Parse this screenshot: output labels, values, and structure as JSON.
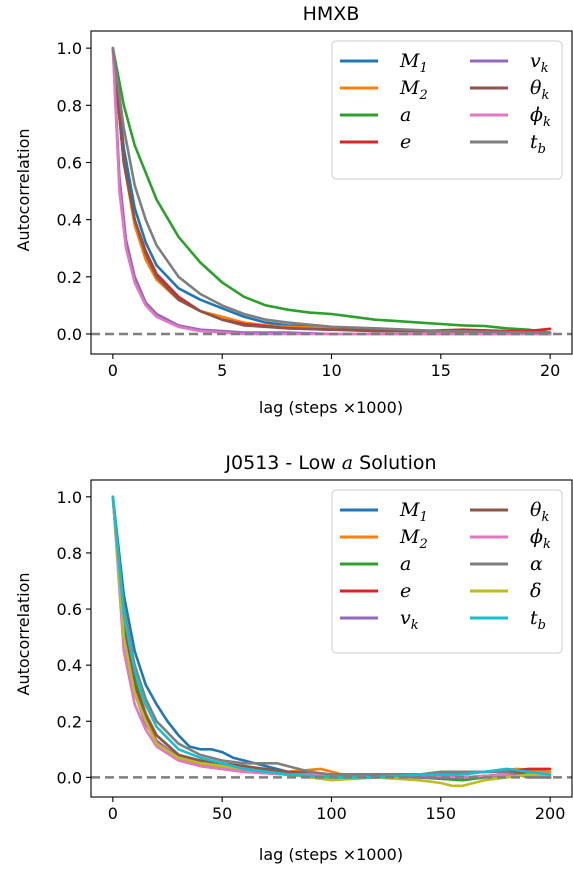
{
  "colors": {
    "blue": "#1f77b4",
    "orange": "#ff7f0e",
    "green": "#2ca02c",
    "red": "#d62728",
    "purple": "#9467bd",
    "brown": "#8c564b",
    "pink": "#e377c2",
    "gray": "#7f7f7f",
    "olive": "#bcbd22",
    "cyan": "#17becf"
  },
  "chart_data": [
    {
      "type": "line",
      "title": "HMXB",
      "xlabel": "lag (steps ×1000)",
      "ylabel": "Autocorrelation",
      "xlim": [
        -1,
        21
      ],
      "ylim": [
        -0.07,
        1.06
      ],
      "xticks": [
        0,
        5,
        10,
        15,
        20
      ],
      "yticks": [
        0.0,
        0.2,
        0.4,
        0.6,
        0.8,
        1.0
      ],
      "xtick_labels": [
        "0",
        "5",
        "10",
        "15",
        "20"
      ],
      "ytick_labels": [
        "0.0",
        "0.2",
        "0.4",
        "0.6",
        "0.8",
        "1.0"
      ],
      "reference_line": 0.0,
      "legend_placement": "top-right",
      "legend_columns": 2,
      "series": [
        {
          "name": "M",
          "sub": "1",
          "color": "#1f77b4",
          "x": [
            0,
            0.5,
            1,
            1.5,
            2,
            3,
            4,
            5,
            6,
            7,
            8,
            10,
            12,
            15,
            20
          ],
          "y": [
            1.0,
            0.65,
            0.44,
            0.32,
            0.24,
            0.16,
            0.12,
            0.09,
            0.06,
            0.04,
            0.03,
            0.02,
            0.015,
            0.01,
            0.0
          ]
        },
        {
          "name": "M",
          "sub": "2",
          "color": "#ff7f0e",
          "x": [
            0,
            0.5,
            1,
            1.5,
            2,
            3,
            4,
            5,
            6,
            7,
            8,
            10,
            12,
            15,
            20
          ],
          "y": [
            1.0,
            0.6,
            0.38,
            0.26,
            0.19,
            0.12,
            0.08,
            0.06,
            0.04,
            0.03,
            0.025,
            0.02,
            0.015,
            0.01,
            0.0
          ]
        },
        {
          "name": "a",
          "sub": "",
          "color": "#2ca02c",
          "x": [
            0,
            0.5,
            1,
            2,
            3,
            4,
            5,
            6,
            7,
            8,
            9,
            10,
            11,
            12,
            13,
            14,
            15,
            16,
            17,
            18,
            19,
            20
          ],
          "y": [
            1.0,
            0.8,
            0.66,
            0.47,
            0.34,
            0.25,
            0.18,
            0.13,
            0.1,
            0.085,
            0.075,
            0.07,
            0.06,
            0.05,
            0.045,
            0.04,
            0.035,
            0.03,
            0.028,
            0.02,
            0.015,
            0.005
          ]
        },
        {
          "name": "e",
          "sub": "",
          "color": "#d62728",
          "x": [
            0,
            0.5,
            1,
            1.5,
            2,
            3,
            4,
            5,
            6,
            8,
            10,
            12,
            14,
            16,
            18,
            19,
            20
          ],
          "y": [
            1.0,
            0.6,
            0.4,
            0.29,
            0.21,
            0.13,
            0.08,
            0.05,
            0.035,
            0.02,
            0.015,
            0.015,
            0.01,
            0.015,
            0.01,
            0.01,
            0.018
          ]
        },
        {
          "name": "v",
          "sub": "k",
          "color": "#9467bd",
          "x": [
            0,
            0.3,
            0.6,
            1,
            1.5,
            2,
            3,
            4,
            5,
            6,
            8,
            10,
            15,
            20
          ],
          "y": [
            1.0,
            0.55,
            0.33,
            0.2,
            0.11,
            0.07,
            0.03,
            0.015,
            0.01,
            0.005,
            0.005,
            0.0,
            0.0,
            0.0
          ]
        },
        {
          "name": "θ",
          "sub": "k",
          "color": "#8c564b",
          "x": [
            0,
            0.5,
            1,
            1.5,
            2,
            3,
            4,
            5,
            6,
            8,
            10,
            12,
            15,
            20
          ],
          "y": [
            1.0,
            0.6,
            0.4,
            0.28,
            0.2,
            0.12,
            0.08,
            0.05,
            0.03,
            0.02,
            0.015,
            0.01,
            0.01,
            0.0
          ]
        },
        {
          "name": "ϕ",
          "sub": "k",
          "color": "#e377c2",
          "x": [
            0,
            0.3,
            0.6,
            1,
            1.5,
            2,
            3,
            4,
            5,
            6,
            8,
            10,
            15,
            20
          ],
          "y": [
            1.0,
            0.5,
            0.3,
            0.18,
            0.1,
            0.06,
            0.025,
            0.01,
            0.005,
            0.0,
            0.0,
            0.0,
            0.0,
            0.0
          ]
        },
        {
          "name": "t",
          "sub": "b",
          "color": "#7f7f7f",
          "x": [
            0,
            0.5,
            1,
            1.5,
            2,
            3,
            4,
            5,
            6,
            7,
            8,
            10,
            12,
            15,
            20
          ],
          "y": [
            1.0,
            0.72,
            0.52,
            0.4,
            0.31,
            0.2,
            0.14,
            0.1,
            0.07,
            0.05,
            0.04,
            0.025,
            0.02,
            0.01,
            0.005
          ]
        }
      ]
    },
    {
      "type": "line",
      "title": "J0513 - Low a Solution",
      "title_prefix": "J0513 - Low ",
      "title_italic": "a",
      "title_suffix": " Solution",
      "xlabel": "lag (steps ×1000)",
      "ylabel": "Autocorrelation",
      "xlim": [
        -10,
        210
      ],
      "ylim": [
        -0.07,
        1.06
      ],
      "xticks": [
        0,
        50,
        100,
        150,
        200
      ],
      "yticks": [
        0.0,
        0.2,
        0.4,
        0.6,
        0.8,
        1.0
      ],
      "xtick_labels": [
        "0",
        "50",
        "100",
        "150",
        "200"
      ],
      "ytick_labels": [
        "0.0",
        "0.2",
        "0.4",
        "0.6",
        "0.8",
        "1.0"
      ],
      "reference_line": 0.0,
      "legend_placement": "top-right",
      "legend_columns": 2,
      "series": [
        {
          "name": "M",
          "sub": "1",
          "color": "#1f77b4",
          "x": [
            0,
            5,
            10,
            15,
            20,
            25,
            30,
            35,
            40,
            45,
            50,
            55,
            60,
            70,
            80,
            90,
            100,
            120,
            140,
            160,
            180,
            200
          ],
          "y": [
            1.0,
            0.65,
            0.45,
            0.33,
            0.26,
            0.2,
            0.15,
            0.11,
            0.1,
            0.1,
            0.09,
            0.07,
            0.06,
            0.04,
            0.02,
            0.01,
            0.01,
            0.01,
            0.01,
            0.0,
            0.01,
            0.0
          ]
        },
        {
          "name": "M",
          "sub": "2",
          "color": "#ff7f0e",
          "x": [
            0,
            5,
            10,
            15,
            20,
            30,
            40,
            50,
            60,
            80,
            95,
            100,
            110,
            130,
            150,
            170,
            185,
            200
          ],
          "y": [
            1.0,
            0.55,
            0.35,
            0.23,
            0.15,
            0.08,
            0.05,
            0.04,
            0.03,
            0.02,
            0.03,
            0.02,
            0.0,
            0.01,
            0.01,
            0.02,
            0.03,
            0.02
          ]
        },
        {
          "name": "a",
          "sub": "",
          "color": "#2ca02c",
          "x": [
            0,
            5,
            10,
            15,
            20,
            30,
            40,
            50,
            60,
            70,
            80,
            100,
            120,
            140,
            160,
            180,
            200
          ],
          "y": [
            1.0,
            0.55,
            0.35,
            0.22,
            0.15,
            0.08,
            0.05,
            0.04,
            0.03,
            0.02,
            0.01,
            0.01,
            0.01,
            0.0,
            -0.01,
            0.01,
            0.0
          ]
        },
        {
          "name": "e",
          "sub": "",
          "color": "#d62728",
          "x": [
            0,
            5,
            10,
            15,
            20,
            30,
            40,
            50,
            60,
            80,
            100,
            120,
            140,
            160,
            180,
            190,
            200
          ],
          "y": [
            1.0,
            0.5,
            0.3,
            0.2,
            0.13,
            0.07,
            0.04,
            0.03,
            0.02,
            0.01,
            0.0,
            0.01,
            0.01,
            0.02,
            0.02,
            0.03,
            0.03
          ]
        },
        {
          "name": "v",
          "sub": "k",
          "color": "#9467bd",
          "x": [
            0,
            5,
            10,
            15,
            20,
            30,
            40,
            50,
            60,
            80,
            100,
            120,
            140,
            160,
            180,
            200
          ],
          "y": [
            1.0,
            0.52,
            0.3,
            0.19,
            0.13,
            0.07,
            0.05,
            0.04,
            0.03,
            0.02,
            0.01,
            0.0,
            0.0,
            0.0,
            0.01,
            0.0
          ]
        },
        {
          "name": "θ",
          "sub": "k",
          "color": "#8c564b",
          "x": [
            0,
            5,
            10,
            15,
            20,
            30,
            40,
            50,
            60,
            80,
            100,
            120,
            140,
            160,
            180,
            200
          ],
          "y": [
            1.0,
            0.55,
            0.33,
            0.22,
            0.15,
            0.08,
            0.06,
            0.05,
            0.04,
            0.02,
            0.01,
            0.01,
            0.01,
            0.02,
            0.02,
            0.01
          ]
        },
        {
          "name": "ϕ",
          "sub": "k",
          "color": "#e377c2",
          "x": [
            0,
            5,
            10,
            15,
            20,
            30,
            40,
            50,
            60,
            80,
            100,
            120,
            140,
            160,
            180,
            200
          ],
          "y": [
            1.0,
            0.45,
            0.26,
            0.17,
            0.11,
            0.06,
            0.04,
            0.03,
            0.02,
            0.01,
            0.01,
            0.0,
            0.01,
            0.0,
            0.01,
            0.0
          ]
        },
        {
          "name": "α",
          "sub": "",
          "color": "#7f7f7f",
          "x": [
            0,
            5,
            10,
            15,
            20,
            30,
            40,
            50,
            60,
            65,
            70,
            75,
            80,
            90,
            100,
            120,
            140,
            150,
            160,
            170,
            180,
            190,
            200
          ],
          "y": [
            1.0,
            0.6,
            0.4,
            0.28,
            0.2,
            0.12,
            0.08,
            0.06,
            0.05,
            0.05,
            0.05,
            0.05,
            0.04,
            0.02,
            0.01,
            0.01,
            0.01,
            0.02,
            0.02,
            0.02,
            0.02,
            0.0,
            0.0
          ]
        },
        {
          "name": "δ",
          "sub": "",
          "color": "#bcbd22",
          "x": [
            0,
            5,
            10,
            15,
            20,
            30,
            40,
            50,
            60,
            80,
            100,
            120,
            140,
            150,
            155,
            160,
            165,
            170,
            180,
            190,
            200
          ],
          "y": [
            1.0,
            0.5,
            0.3,
            0.2,
            0.12,
            0.07,
            0.05,
            0.04,
            0.03,
            0.01,
            -0.01,
            0.0,
            -0.01,
            -0.02,
            -0.03,
            -0.03,
            -0.02,
            -0.01,
            0.0,
            0.01,
            0.01
          ]
        },
        {
          "name": "t",
          "sub": "b",
          "color": "#17becf",
          "x": [
            0,
            5,
            10,
            15,
            20,
            30,
            40,
            50,
            60,
            80,
            100,
            120,
            140,
            160,
            170,
            180,
            190,
            200
          ],
          "y": [
            1.0,
            0.58,
            0.38,
            0.26,
            0.18,
            0.1,
            0.07,
            0.05,
            0.03,
            0.01,
            0.0,
            0.0,
            0.01,
            0.01,
            0.02,
            0.03,
            0.02,
            0.01
          ]
        }
      ]
    }
  ]
}
